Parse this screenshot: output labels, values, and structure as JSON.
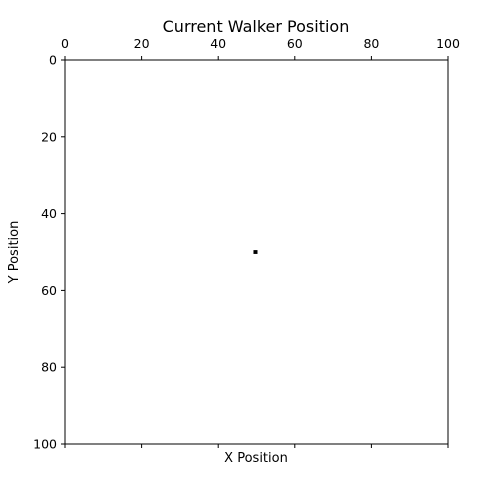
{
  "chart_data": {
    "type": "heatmap",
    "title": "Current Walker Position",
    "xlabel": "X Position",
    "ylabel": "Y Position",
    "xlim": [
      0,
      100
    ],
    "ylim": [
      0,
      100
    ],
    "y_inverted": true,
    "x_ticks_position": "top",
    "x_ticks": [
      0,
      20,
      40,
      60,
      80,
      100
    ],
    "y_ticks": [
      0,
      20,
      40,
      60,
      80,
      100
    ],
    "grid": false,
    "background_color": "#ffffff",
    "marker_color": "#000000",
    "walker": {
      "x": 49,
      "y": 50
    }
  }
}
